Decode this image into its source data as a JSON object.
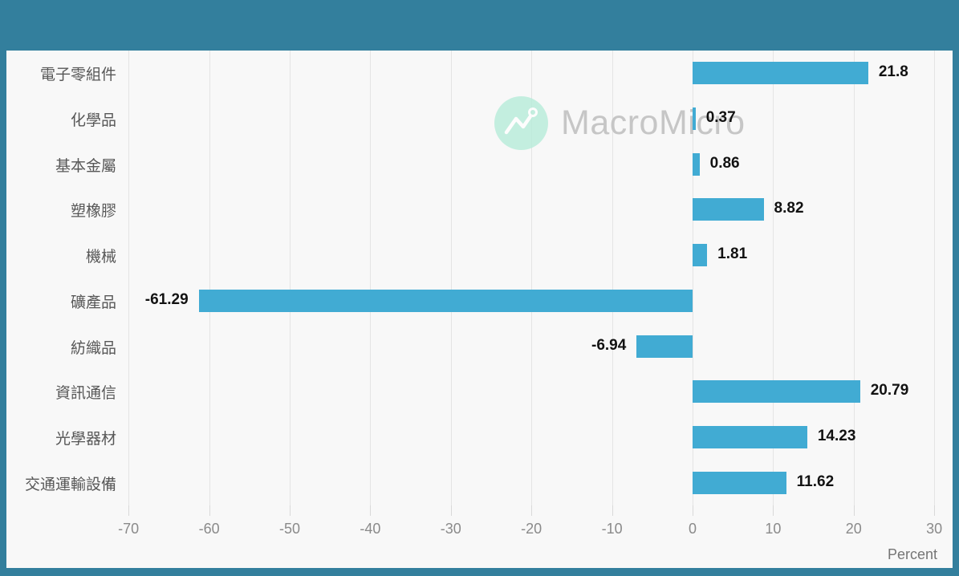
{
  "watermark": {
    "text": "MacroMicro",
    "logo_icon": "mountain-peaks-icon"
  },
  "chart_data": {
    "type": "bar",
    "orientation": "horizontal",
    "title": "",
    "categories": [
      "電子零組件",
      "化學品",
      "基本金屬",
      "塑橡膠",
      "機械",
      "礦產品",
      "紡織品",
      "資訊通信",
      "光學器材",
      "交通運輸設備"
    ],
    "values": [
      21.8,
      0.37,
      0.86,
      8.82,
      1.81,
      -61.29,
      -6.94,
      20.79,
      14.23,
      11.62
    ],
    "value_labels": [
      "21.8",
      "0.37",
      "0.86",
      "8.82",
      "1.81",
      "-61.29",
      "-6.94",
      "20.79",
      "14.23",
      "11.62"
    ],
    "xlabel": "Percent",
    "ylabel": "",
    "x_ticks": [
      -70,
      -60,
      -50,
      -40,
      -30,
      -20,
      -10,
      0,
      10,
      20,
      30
    ],
    "x_tick_labels": [
      "-70",
      "-60",
      "-50",
      "-40",
      "-30",
      "-20",
      "-10",
      "0",
      "10",
      "20",
      "30"
    ],
    "xlim": [
      -85,
      32.3
    ],
    "grid": true,
    "legend_position": "none",
    "bar_color": "#41abd3"
  },
  "colors": {
    "frame": "#337f9d",
    "plot_background": "#f8f8f8",
    "gridline": "#e4e4e4",
    "bar": "#41abd3",
    "category_label": "#575757",
    "value_label": "#121212",
    "tick_label": "#8a8a8a",
    "axis_title": "#757575",
    "watermark_text": "#c6c6c6",
    "watermark_logo_fill": "#b5ecd9"
  }
}
